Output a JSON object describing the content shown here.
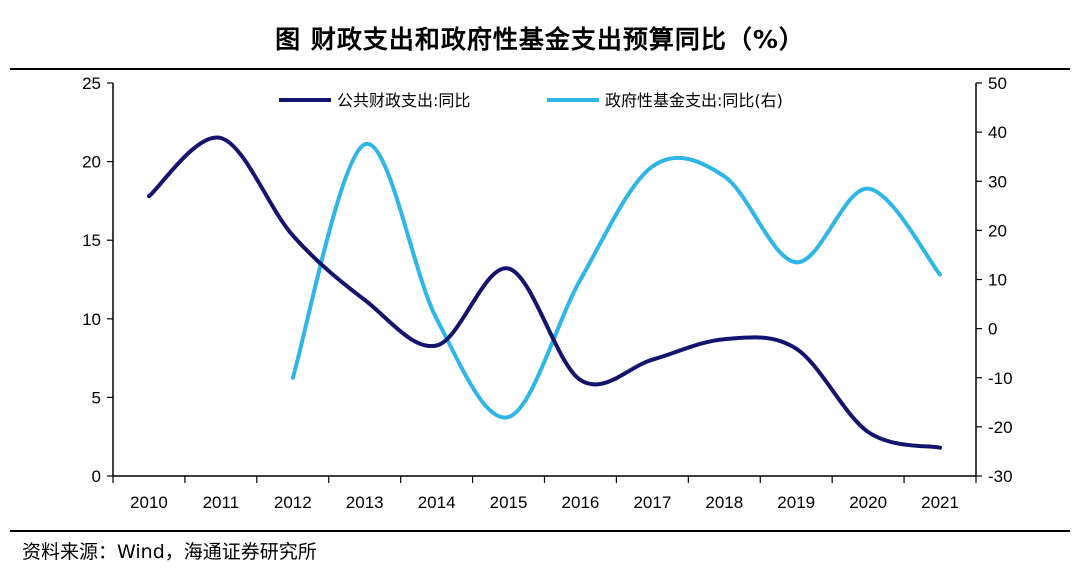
{
  "title": "图  财政支出和政府性基金支出预算同比（%）",
  "source": "资料来源：Wind，海通证券研究所",
  "chart_data": {
    "type": "line",
    "categories": [
      "2010",
      "2011",
      "2012",
      "2013",
      "2014",
      "2015",
      "2016",
      "2017",
      "2018",
      "2019",
      "2020",
      "2021"
    ],
    "y_left": {
      "min": 0,
      "max": 25,
      "ticks": [
        "0",
        "5",
        "10",
        "15",
        "20",
        "25"
      ]
    },
    "y_right": {
      "min": -30,
      "max": 50,
      "ticks": [
        "-30",
        "-20",
        "-10",
        "0",
        "10",
        "20",
        "30",
        "40",
        "50"
      ]
    },
    "grid": false,
    "legend_position": "top",
    "series": [
      {
        "name": "公共财政支出:同比",
        "axis": "left",
        "color": "#14146e",
        "values": [
          17.8,
          21.5,
          15.3,
          11.2,
          8.3,
          13.2,
          6.1,
          7.4,
          8.7,
          8.1,
          2.8,
          1.8
        ]
      },
      {
        "name": "政府性基金支出:同比(右)",
        "axis": "right",
        "color": "#2eb6e6",
        "values": [
          null,
          null,
          -10.0,
          37.5,
          2.0,
          -18.0,
          10.0,
          33.0,
          31.0,
          13.5,
          28.5,
          11.0
        ]
      }
    ]
  }
}
